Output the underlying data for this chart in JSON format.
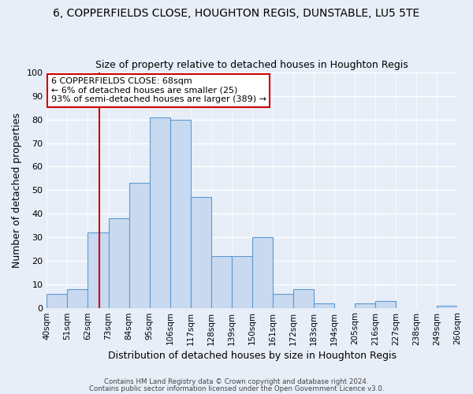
{
  "title": "6, COPPERFIELDS CLOSE, HOUGHTON REGIS, DUNSTABLE, LU5 5TE",
  "subtitle": "Size of property relative to detached houses in Houghton Regis",
  "xlabel": "Distribution of detached houses by size in Houghton Regis",
  "ylabel": "Number of detached properties",
  "bin_labels": [
    "40sqm",
    "51sqm",
    "62sqm",
    "73sqm",
    "84sqm",
    "95sqm",
    "106sqm",
    "117sqm",
    "128sqm",
    "139sqm",
    "150sqm",
    "161sqm",
    "172sqm",
    "183sqm",
    "194sqm",
    "205sqm",
    "216sqm",
    "227sqm",
    "238sqm",
    "249sqm",
    "260sqm"
  ],
  "bin_edges": [
    40,
    51,
    62,
    73,
    84,
    95,
    106,
    117,
    128,
    139,
    150,
    161,
    172,
    183,
    194,
    205,
    216,
    227,
    238,
    249,
    260
  ],
  "bar_heights": [
    6,
    8,
    32,
    38,
    53,
    81,
    80,
    47,
    22,
    22,
    30,
    6,
    8,
    2,
    0,
    2,
    3,
    0,
    0,
    1
  ],
  "bar_color": "#c9d9f0",
  "bar_edge_color": "#5b9bd5",
  "vline_x": 68,
  "vline_color": "#cc0000",
  "ylim": [
    0,
    100
  ],
  "yticks": [
    0,
    10,
    20,
    30,
    40,
    50,
    60,
    70,
    80,
    90,
    100
  ],
  "annotation_text": "6 COPPERFIELDS CLOSE: 68sqm\n← 6% of detached houses are smaller (25)\n93% of semi-detached houses are larger (389) →",
  "annotation_box_color": "#ffffff",
  "annotation_box_edge": "#cc0000",
  "footer1": "Contains HM Land Registry data © Crown copyright and database right 2024.",
  "footer2": "Contains public sector information licensed under the Open Government Licence v3.0.",
  "bg_color": "#e8eef8",
  "plot_bg_color": "#e8eef8",
  "grid_color": "#ffffff",
  "title_fontsize": 10,
  "subtitle_fontsize": 9
}
